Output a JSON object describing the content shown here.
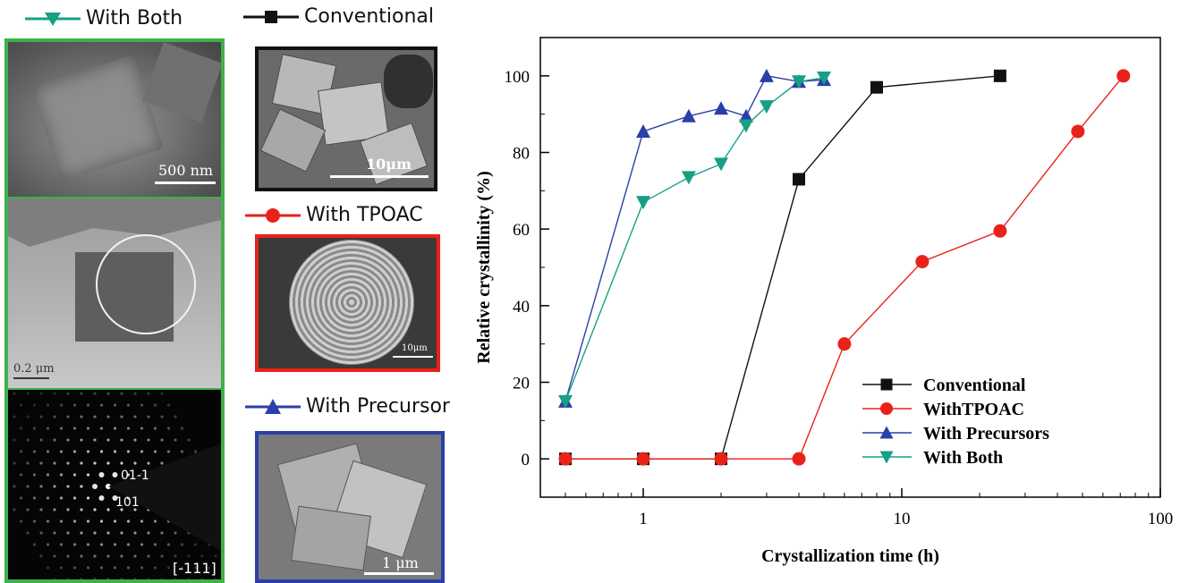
{
  "left_panel": {
    "legend_label": "With Both",
    "color": "#16a085",
    "sem_scale": "500 nm",
    "tem_scale": "0.2 μm",
    "saed_labels": [
      "01-1",
      "101"
    ],
    "saed_zone": "[-111]"
  },
  "middle_panels": [
    {
      "legend_label": "Conventional",
      "color": "#111111",
      "marker": "square",
      "scale": "10μm"
    },
    {
      "legend_label": "With TPOAC",
      "color": "#e8221b",
      "marker": "circle",
      "scale": "10μm"
    },
    {
      "legend_label": "With Precursor",
      "color": "#2b3fa8",
      "marker": "triangle-up",
      "scale": "1 μm"
    }
  ],
  "chart_data": {
    "type": "line",
    "xscale": "log",
    "xlabel": "Crystallization time (h)",
    "ylabel": "Relative crystallinity (%)",
    "xlim": [
      0.4,
      100
    ],
    "ylim": [
      -10,
      110
    ],
    "x_ticks": [
      1,
      10,
      100
    ],
    "x_tick_labels": [
      "1",
      "10",
      "100"
    ],
    "y_ticks": [
      0,
      20,
      40,
      60,
      80,
      100
    ],
    "y_tick_labels": [
      "0",
      "20",
      "40",
      "60",
      "80",
      "100"
    ],
    "legend_position": "lower-right",
    "series": [
      {
        "name": "Conventional",
        "color": "#111111",
        "marker": "square",
        "x": [
          0.5,
          1,
          2,
          4,
          8,
          24
        ],
        "y": [
          0,
          0,
          0,
          73,
          97,
          100
        ]
      },
      {
        "name": "WithTPOAC",
        "color": "#e8221b",
        "marker": "circle",
        "x": [
          0.5,
          1,
          2,
          4,
          6,
          12,
          24,
          48,
          72
        ],
        "y": [
          0,
          0,
          0,
          0,
          30,
          51.5,
          59.5,
          85.5,
          100
        ]
      },
      {
        "name": "With Precursors",
        "color": "#2b3fa8",
        "marker": "triangle-up",
        "x": [
          0.5,
          1,
          1.5,
          2,
          2.5,
          3,
          4,
          5
        ],
        "y": [
          15,
          85.5,
          89.5,
          91.5,
          89.5,
          100,
          98.5,
          99
        ]
      },
      {
        "name": "With Both",
        "color": "#16a085",
        "marker": "triangle-down",
        "x": [
          0.5,
          1,
          1.5,
          2,
          2.5,
          3,
          4,
          5
        ],
        "y": [
          15,
          67,
          73.5,
          77,
          87,
          92,
          98.5,
          99.5
        ]
      }
    ]
  }
}
